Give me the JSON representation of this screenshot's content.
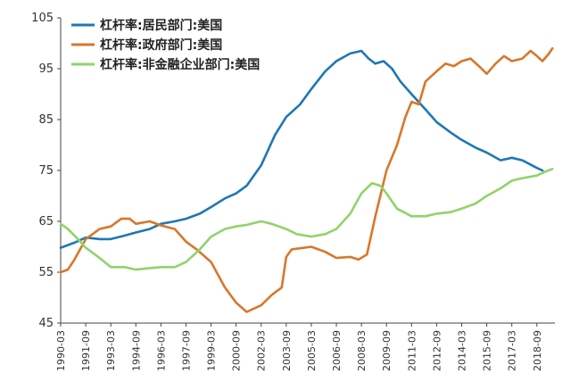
{
  "chart_data": {
    "type": "line",
    "title": "",
    "xlabel": "",
    "ylabel": "",
    "ylim": [
      45,
      105
    ],
    "xlim": [
      1990.17,
      2019.75
    ],
    "y_ticks": [
      45,
      55,
      65,
      75,
      85,
      95,
      105
    ],
    "x_tick_labels": [
      "1990-03",
      "1991-09",
      "1993-03",
      "1994-09",
      "1996-03",
      "1997-09",
      "1999-03",
      "2000-09",
      "2002-03",
      "2003-09",
      "2005-03",
      "2006-09",
      "2008-03",
      "2009-09",
      "2011-03",
      "2012-09",
      "2014-03",
      "2015-09",
      "2017-03",
      "2018-09"
    ],
    "x_tick_values": [
      1990.17,
      1991.67,
      1993.17,
      1994.67,
      1996.17,
      1997.67,
      1999.17,
      2000.67,
      2002.17,
      2003.67,
      2005.17,
      2006.67,
      2008.17,
      2009.67,
      2011.17,
      2012.67,
      2014.17,
      2015.67,
      2017.17,
      2018.67
    ],
    "legend_position": "top-left",
    "grid": false,
    "series": [
      {
        "name": "杠杆率:居民部门:美国",
        "color": "#1f77b4",
        "points": [
          [
            1990.17,
            59.8
          ],
          [
            1991.0,
            60.8
          ],
          [
            1991.67,
            61.8
          ],
          [
            1992.5,
            61.5
          ],
          [
            1993.17,
            61.5
          ],
          [
            1994.0,
            62.2
          ],
          [
            1994.67,
            62.8
          ],
          [
            1995.5,
            63.5
          ],
          [
            1996.17,
            64.5
          ],
          [
            1997.0,
            65.0
          ],
          [
            1997.67,
            65.5
          ],
          [
            1998.5,
            66.5
          ],
          [
            1999.17,
            67.8
          ],
          [
            2000.0,
            69.5
          ],
          [
            2000.67,
            70.5
          ],
          [
            2001.3,
            72.0
          ],
          [
            2002.17,
            76.0
          ],
          [
            2003.0,
            82.0
          ],
          [
            2003.67,
            85.5
          ],
          [
            2004.5,
            88.0
          ],
          [
            2005.17,
            91.0
          ],
          [
            2006.0,
            94.5
          ],
          [
            2006.67,
            96.5
          ],
          [
            2007.5,
            98.0
          ],
          [
            2008.17,
            98.5
          ],
          [
            2008.6,
            97.0
          ],
          [
            2009.0,
            96.0
          ],
          [
            2009.5,
            96.5
          ],
          [
            2010.0,
            95.0
          ],
          [
            2010.5,
            92.5
          ],
          [
            2011.17,
            90.0
          ],
          [
            2012.0,
            87.0
          ],
          [
            2012.67,
            84.5
          ],
          [
            2013.5,
            82.5
          ],
          [
            2014.17,
            81.0
          ],
          [
            2015.0,
            79.5
          ],
          [
            2015.67,
            78.5
          ],
          [
            2016.5,
            77.0
          ],
          [
            2017.17,
            77.5
          ],
          [
            2017.8,
            77.0
          ],
          [
            2018.67,
            75.5
          ],
          [
            2019.0,
            75.0
          ]
        ]
      },
      {
        "name": "杠杆率:政府部门:美国",
        "color": "#d8772a",
        "points": [
          [
            1990.17,
            55.0
          ],
          [
            1990.6,
            55.5
          ],
          [
            1991.0,
            57.5
          ],
          [
            1991.67,
            61.5
          ],
          [
            1992.5,
            63.5
          ],
          [
            1993.17,
            64.0
          ],
          [
            1993.8,
            65.5
          ],
          [
            1994.3,
            65.5
          ],
          [
            1994.67,
            64.5
          ],
          [
            1995.5,
            65.0
          ],
          [
            1996.17,
            64.2
          ],
          [
            1997.0,
            63.5
          ],
          [
            1997.67,
            61.0
          ],
          [
            1998.3,
            59.5
          ],
          [
            1999.17,
            57.0
          ],
          [
            2000.0,
            52.0
          ],
          [
            2000.67,
            49.0
          ],
          [
            2001.3,
            47.2
          ],
          [
            2002.17,
            48.5
          ],
          [
            2002.8,
            50.5
          ],
          [
            2003.4,
            52.0
          ],
          [
            2003.67,
            58.0
          ],
          [
            2004.0,
            59.5
          ],
          [
            2005.17,
            60.0
          ],
          [
            2006.0,
            59.0
          ],
          [
            2006.67,
            57.8
          ],
          [
            2007.5,
            58.0
          ],
          [
            2008.0,
            57.5
          ],
          [
            2008.5,
            58.5
          ],
          [
            2009.0,
            66.0
          ],
          [
            2009.67,
            75.0
          ],
          [
            2010.3,
            80.0
          ],
          [
            2010.8,
            85.5
          ],
          [
            2011.17,
            88.5
          ],
          [
            2011.6,
            88.0
          ],
          [
            2012.0,
            92.5
          ],
          [
            2012.67,
            94.5
          ],
          [
            2013.2,
            96.0
          ],
          [
            2013.7,
            95.5
          ],
          [
            2014.17,
            96.5
          ],
          [
            2014.7,
            97.0
          ],
          [
            2015.2,
            95.5
          ],
          [
            2015.67,
            94.0
          ],
          [
            2016.2,
            96.0
          ],
          [
            2016.7,
            97.5
          ],
          [
            2017.17,
            96.5
          ],
          [
            2017.8,
            97.0
          ],
          [
            2018.3,
            98.5
          ],
          [
            2018.67,
            97.5
          ],
          [
            2019.0,
            96.5
          ],
          [
            2019.4,
            98.0
          ],
          [
            2019.6,
            99.0
          ]
        ]
      },
      {
        "name": "杠杆率:非金融企业部门:美国",
        "color": "#8fd46a",
        "points": [
          [
            1990.17,
            64.5
          ],
          [
            1990.6,
            63.5
          ],
          [
            1991.2,
            61.5
          ],
          [
            1991.67,
            59.8
          ],
          [
            1992.5,
            57.8
          ],
          [
            1993.17,
            56.0
          ],
          [
            1994.0,
            56.0
          ],
          [
            1994.67,
            55.5
          ],
          [
            1995.5,
            55.8
          ],
          [
            1996.17,
            56.0
          ],
          [
            1997.0,
            56.0
          ],
          [
            1997.67,
            57.0
          ],
          [
            1998.5,
            59.5
          ],
          [
            1999.17,
            62.0
          ],
          [
            2000.0,
            63.5
          ],
          [
            2000.67,
            64.0
          ],
          [
            2001.3,
            64.3
          ],
          [
            2002.17,
            65.0
          ],
          [
            2002.8,
            64.5
          ],
          [
            2003.67,
            63.5
          ],
          [
            2004.3,
            62.5
          ],
          [
            2005.17,
            62.0
          ],
          [
            2006.0,
            62.5
          ],
          [
            2006.67,
            63.5
          ],
          [
            2007.5,
            66.5
          ],
          [
            2008.17,
            70.5
          ],
          [
            2008.8,
            72.5
          ],
          [
            2009.3,
            72.0
          ],
          [
            2009.67,
            70.5
          ],
          [
            2010.3,
            67.5
          ],
          [
            2011.17,
            66.0
          ],
          [
            2012.0,
            66.0
          ],
          [
            2012.67,
            66.5
          ],
          [
            2013.5,
            66.8
          ],
          [
            2014.17,
            67.5
          ],
          [
            2015.0,
            68.5
          ],
          [
            2015.67,
            70.0
          ],
          [
            2016.5,
            71.5
          ],
          [
            2017.17,
            73.0
          ],
          [
            2017.8,
            73.5
          ],
          [
            2018.67,
            74.0
          ],
          [
            2019.2,
            74.8
          ],
          [
            2019.6,
            75.3
          ]
        ]
      }
    ]
  }
}
